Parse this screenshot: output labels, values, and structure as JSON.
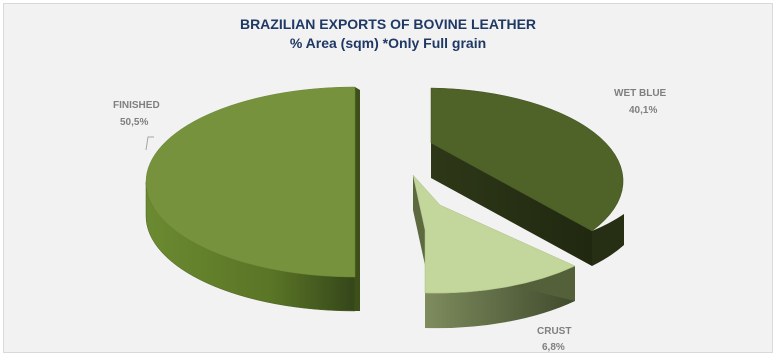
{
  "chart_data": {
    "type": "pie",
    "title": "BRAZILIAN EXPORTS OF BOVINE LEATHER",
    "subtitle": "% Area (sqm) *Only Full grain",
    "categories": [
      "FINISHED",
      "WET BLUE",
      "CRUST"
    ],
    "values": [
      50.5,
      40.1,
      6.8
    ],
    "data_labels": [
      "50,5%",
      "40,1%",
      "6,8%"
    ],
    "colors": [
      "#76923c",
      "#4f6228",
      "#c3d69b"
    ],
    "legend": "none",
    "style": "3d-exploded"
  }
}
